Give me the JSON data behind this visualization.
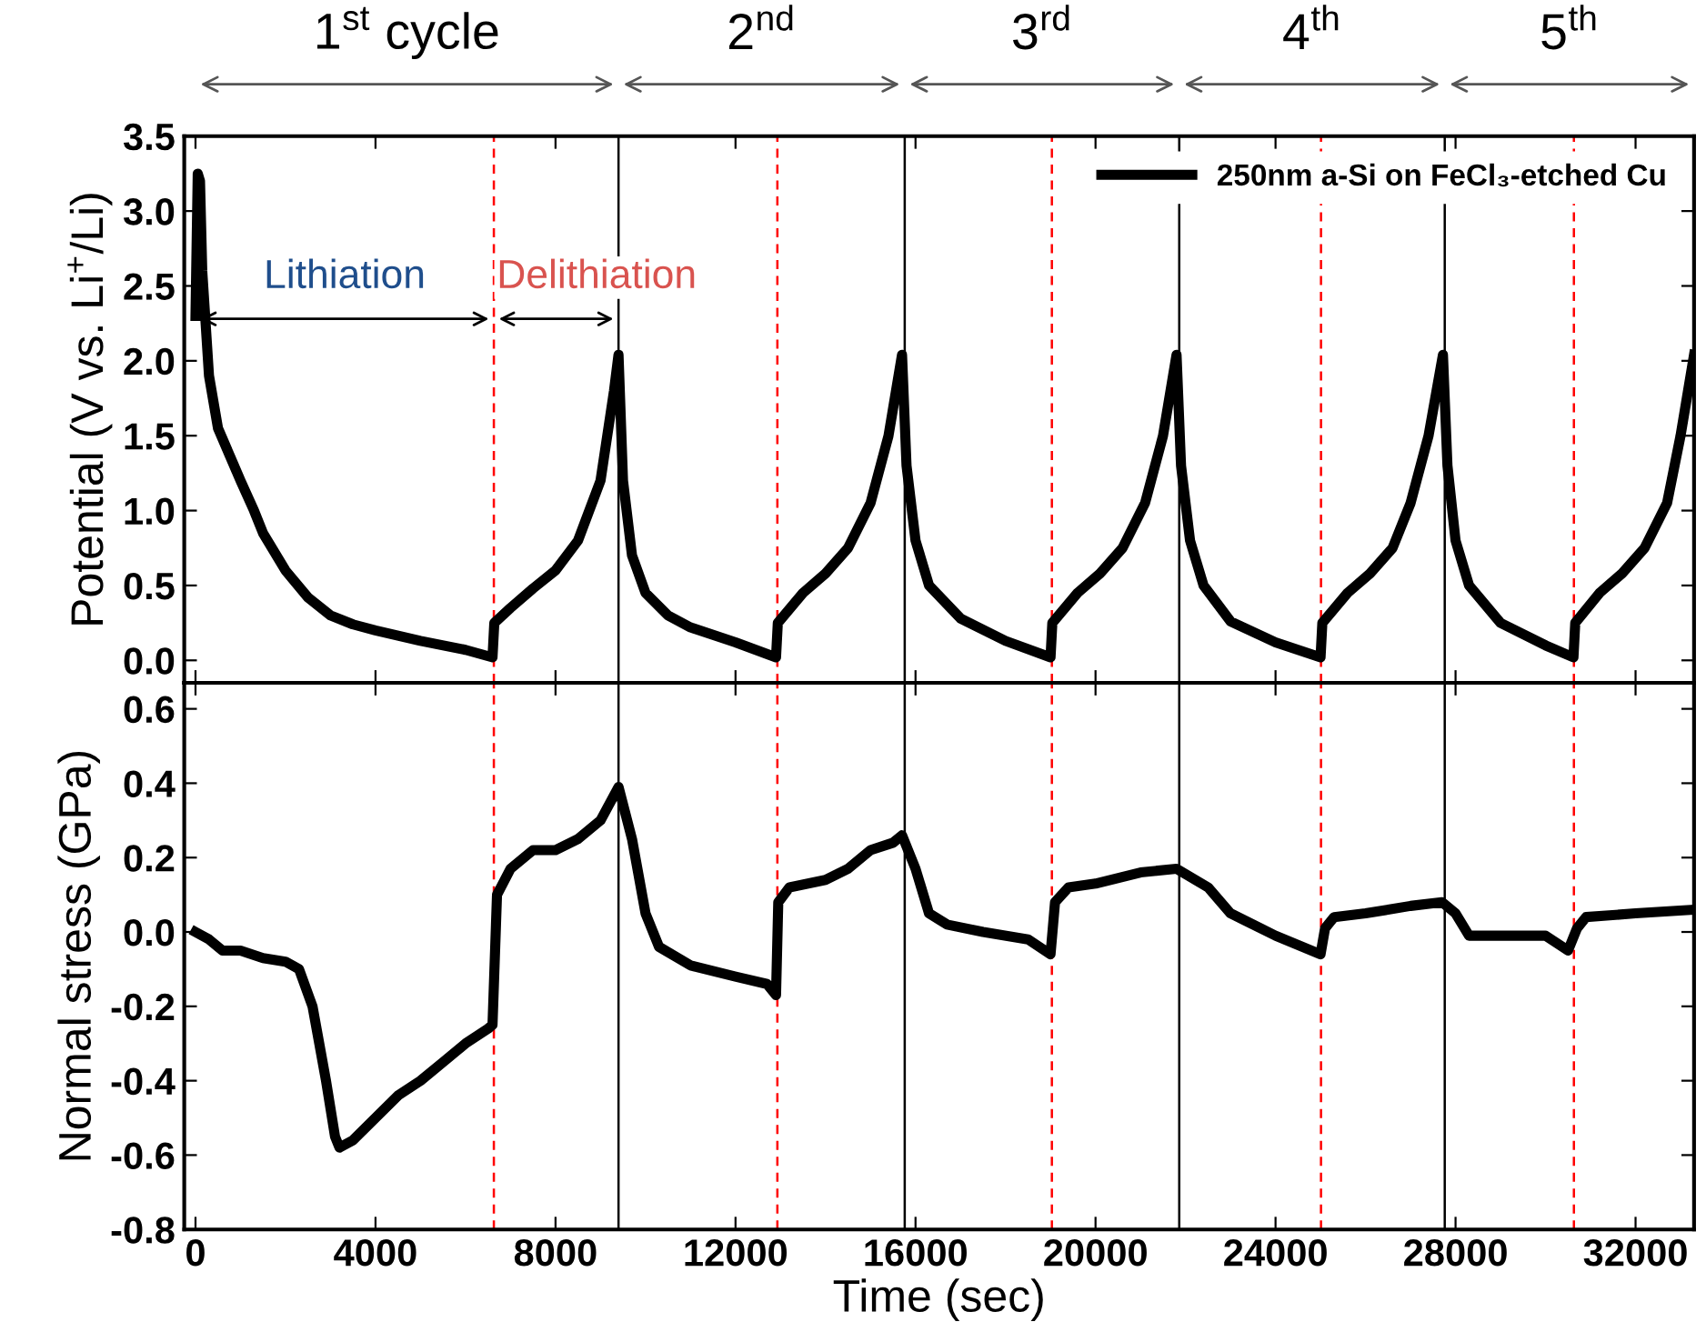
{
  "chart_data": [
    {
      "type": "line",
      "ylabel": "Potential (V vs. Li$^{+}$/Li)",
      "xlim": [
        -250,
        33300
      ],
      "ylim": [
        -0.15,
        3.5
      ],
      "xticks": [
        0,
        4000,
        8000,
        12000,
        16000,
        20000,
        24000,
        28000,
        32000
      ],
      "yticks": [
        {
          "value": 0,
          "label": "0.0"
        },
        0.5,
        {
          "value": 1,
          "label": "1.0"
        },
        1.5,
        {
          "value": 2,
          "label": "2.0"
        },
        2.5,
        {
          "value": 3,
          "label": "3.0"
        },
        3.5
      ],
      "tick_labels": "y",
      "legend": "top right",
      "grid": false,
      "marker": "none",
      "line_style": "solid",
      "annotations": [
        "1$^{st}$ cycle",
        "2$^{nd}$",
        "3$^{rd}$",
        "4$^{th}$",
        "5$^{th}$",
        {
          "text": "Lithiation",
          "x": 6630,
          "y": 2.28
        },
        {
          "text": "Delithiation",
          "x": 9400,
          "y": 2.28
        }
      ],
      "ref_lines": [
        {
          "axis": "x",
          "value": 6630,
          "color": "#ff0000",
          "line_style": "dashed"
        },
        {
          "axis": "x",
          "value": 9400,
          "color": "#000000",
          "line_style": "solid"
        },
        {
          "axis": "x",
          "value": 12930,
          "color": "#ff0000",
          "line_style": "dashed"
        },
        {
          "axis": "x",
          "value": 15760,
          "color": "#000000",
          "line_style": "solid"
        },
        {
          "axis": "x",
          "value": 19030,
          "color": "#ff0000",
          "line_style": "dashed"
        },
        {
          "axis": "x",
          "value": 21860,
          "color": "#000000",
          "line_style": "solid"
        },
        {
          "axis": "x",
          "value": 25010,
          "color": "#ff0000",
          "line_style": "dashed"
        },
        {
          "axis": "x",
          "value": 27760,
          "color": "#000000",
          "line_style": "solid"
        },
        {
          "axis": "x",
          "value": 30630,
          "color": "#ff0000",
          "line_style": "dashed"
        }
      ],
      "series": [
        {
          "name": "250nm a-Si on FeCl₃-etched Cu",
          "color": "#000000",
          "x": [
            0,
            50,
            100,
            150,
            300,
            500,
            1000,
            1300,
            1500,
            2000,
            2500,
            3000,
            3500,
            4000,
            5000,
            6000,
            6600,
            6640,
            7000,
            7500,
            8000,
            8500,
            9000,
            9300,
            9400,
            9500,
            9700,
            10000,
            10500,
            11000,
            12000,
            12900,
            12940,
            13500,
            14000,
            14500,
            15000,
            15400,
            15700,
            15800,
            16000,
            16300,
            17000,
            18000,
            19000,
            19040,
            19600,
            20100,
            20600,
            21100,
            21500,
            21800,
            21900,
            22100,
            22400,
            23000,
            24000,
            25000,
            25040,
            25600,
            26100,
            26600,
            27000,
            27400,
            27720,
            27820,
            28000,
            28300,
            29000,
            30000,
            30620,
            30660,
            31200,
            31700,
            32200,
            32700,
            33000,
            33300
          ],
          "values": [
            2.3,
            3.25,
            3.2,
            2.6,
            1.9,
            1.55,
            1.2,
            1.0,
            0.85,
            0.6,
            0.42,
            0.3,
            0.24,
            0.2,
            0.13,
            0.07,
            0.02,
            0.25,
            0.35,
            0.48,
            0.6,
            0.8,
            1.2,
            1.8,
            2.04,
            1.2,
            0.7,
            0.45,
            0.3,
            0.22,
            0.12,
            0.02,
            0.25,
            0.45,
            0.58,
            0.75,
            1.05,
            1.5,
            2.04,
            1.3,
            0.8,
            0.5,
            0.28,
            0.13,
            0.02,
            0.25,
            0.45,
            0.58,
            0.75,
            1.05,
            1.5,
            2.04,
            1.3,
            0.8,
            0.5,
            0.26,
            0.12,
            0.02,
            0.25,
            0.45,
            0.58,
            0.75,
            1.05,
            1.5,
            2.04,
            1.3,
            0.8,
            0.5,
            0.25,
            0.1,
            0.02,
            0.25,
            0.45,
            0.58,
            0.75,
            1.05,
            1.5,
            2.04
          ]
        }
      ]
    },
    {
      "type": "line",
      "ylabel": "Normal stress (GPa)",
      "xlabel": "Time (sec)",
      "xlim": [
        -250,
        33300
      ],
      "ylim": [
        -0.8,
        0.67
      ],
      "xticks": [
        0,
        4000,
        8000,
        12000,
        16000,
        20000,
        24000,
        28000,
        32000
      ],
      "yticks": [
        {
          "value": -0.8,
          "label": "-0.8"
        },
        {
          "value": -0.6,
          "label": "-0.6"
        },
        {
          "value": -0.4,
          "label": "-0.4"
        },
        {
          "value": -0.2,
          "label": "-0.2"
        },
        {
          "value": 0,
          "label": "0.0"
        },
        0.2,
        0.4,
        0.6
      ],
      "grid": false,
      "marker": "none",
      "line_style": "solid",
      "ref_lines": [
        {
          "axis": "x",
          "value": 6630,
          "color": "#ff0000",
          "line_style": "dashed"
        },
        {
          "axis": "x",
          "value": 9400,
          "color": "#000000",
          "line_style": "solid"
        },
        {
          "axis": "x",
          "value": 12930,
          "color": "#ff0000",
          "line_style": "dashed"
        },
        {
          "axis": "x",
          "value": 15760,
          "color": "#000000",
          "line_style": "solid"
        },
        {
          "axis": "x",
          "value": 19030,
          "color": "#ff0000",
          "line_style": "dashed"
        },
        {
          "axis": "x",
          "value": 21860,
          "color": "#000000",
          "line_style": "solid"
        },
        {
          "axis": "x",
          "value": 25010,
          "color": "#ff0000",
          "line_style": "dashed"
        },
        {
          "axis": "x",
          "value": 27760,
          "color": "#000000",
          "line_style": "solid"
        },
        {
          "axis": "x",
          "value": 30630,
          "color": "#ff0000",
          "line_style": "dashed"
        }
      ],
      "series": [
        {
          "color": "#000000",
          "x": [
            0,
            300,
            600,
            1000,
            1500,
            2000,
            2300,
            2600,
            2900,
            3100,
            3200,
            3500,
            4000,
            4500,
            5000,
            5500,
            6000,
            6500,
            6600,
            6700,
            7000,
            7500,
            8000,
            8500,
            9000,
            9400,
            9700,
            10000,
            10300,
            11000,
            12000,
            12700,
            12900,
            12950,
            13200,
            14000,
            14500,
            15000,
            15500,
            15700,
            16000,
            16300,
            16700,
            17500,
            18500,
            19000,
            19100,
            19400,
            20000,
            21000,
            21800,
            22500,
            23000,
            24000,
            25000,
            25100,
            25300,
            26000,
            27000,
            27700,
            28000,
            28300,
            29000,
            30000,
            30500,
            30700,
            30900,
            32000,
            33300
          ],
          "values": [
            0.0,
            -0.02,
            -0.05,
            -0.05,
            -0.07,
            -0.08,
            -0.1,
            -0.2,
            -0.4,
            -0.55,
            -0.58,
            -0.56,
            -0.5,
            -0.44,
            -0.4,
            -0.35,
            -0.3,
            -0.26,
            -0.25,
            0.1,
            0.17,
            0.22,
            0.22,
            0.25,
            0.3,
            0.39,
            0.25,
            0.05,
            -0.04,
            -0.09,
            -0.12,
            -0.14,
            -0.17,
            0.08,
            0.12,
            0.14,
            0.17,
            0.22,
            0.24,
            0.26,
            0.17,
            0.05,
            0.02,
            0.0,
            -0.02,
            -0.06,
            0.08,
            0.12,
            0.13,
            0.16,
            0.17,
            0.12,
            0.05,
            -0.01,
            -0.06,
            0.01,
            0.04,
            0.05,
            0.07,
            0.08,
            0.05,
            -0.01,
            -0.01,
            -0.01,
            -0.05,
            0.01,
            0.04,
            0.05,
            0.06
          ]
        }
      ]
    }
  ]
}
